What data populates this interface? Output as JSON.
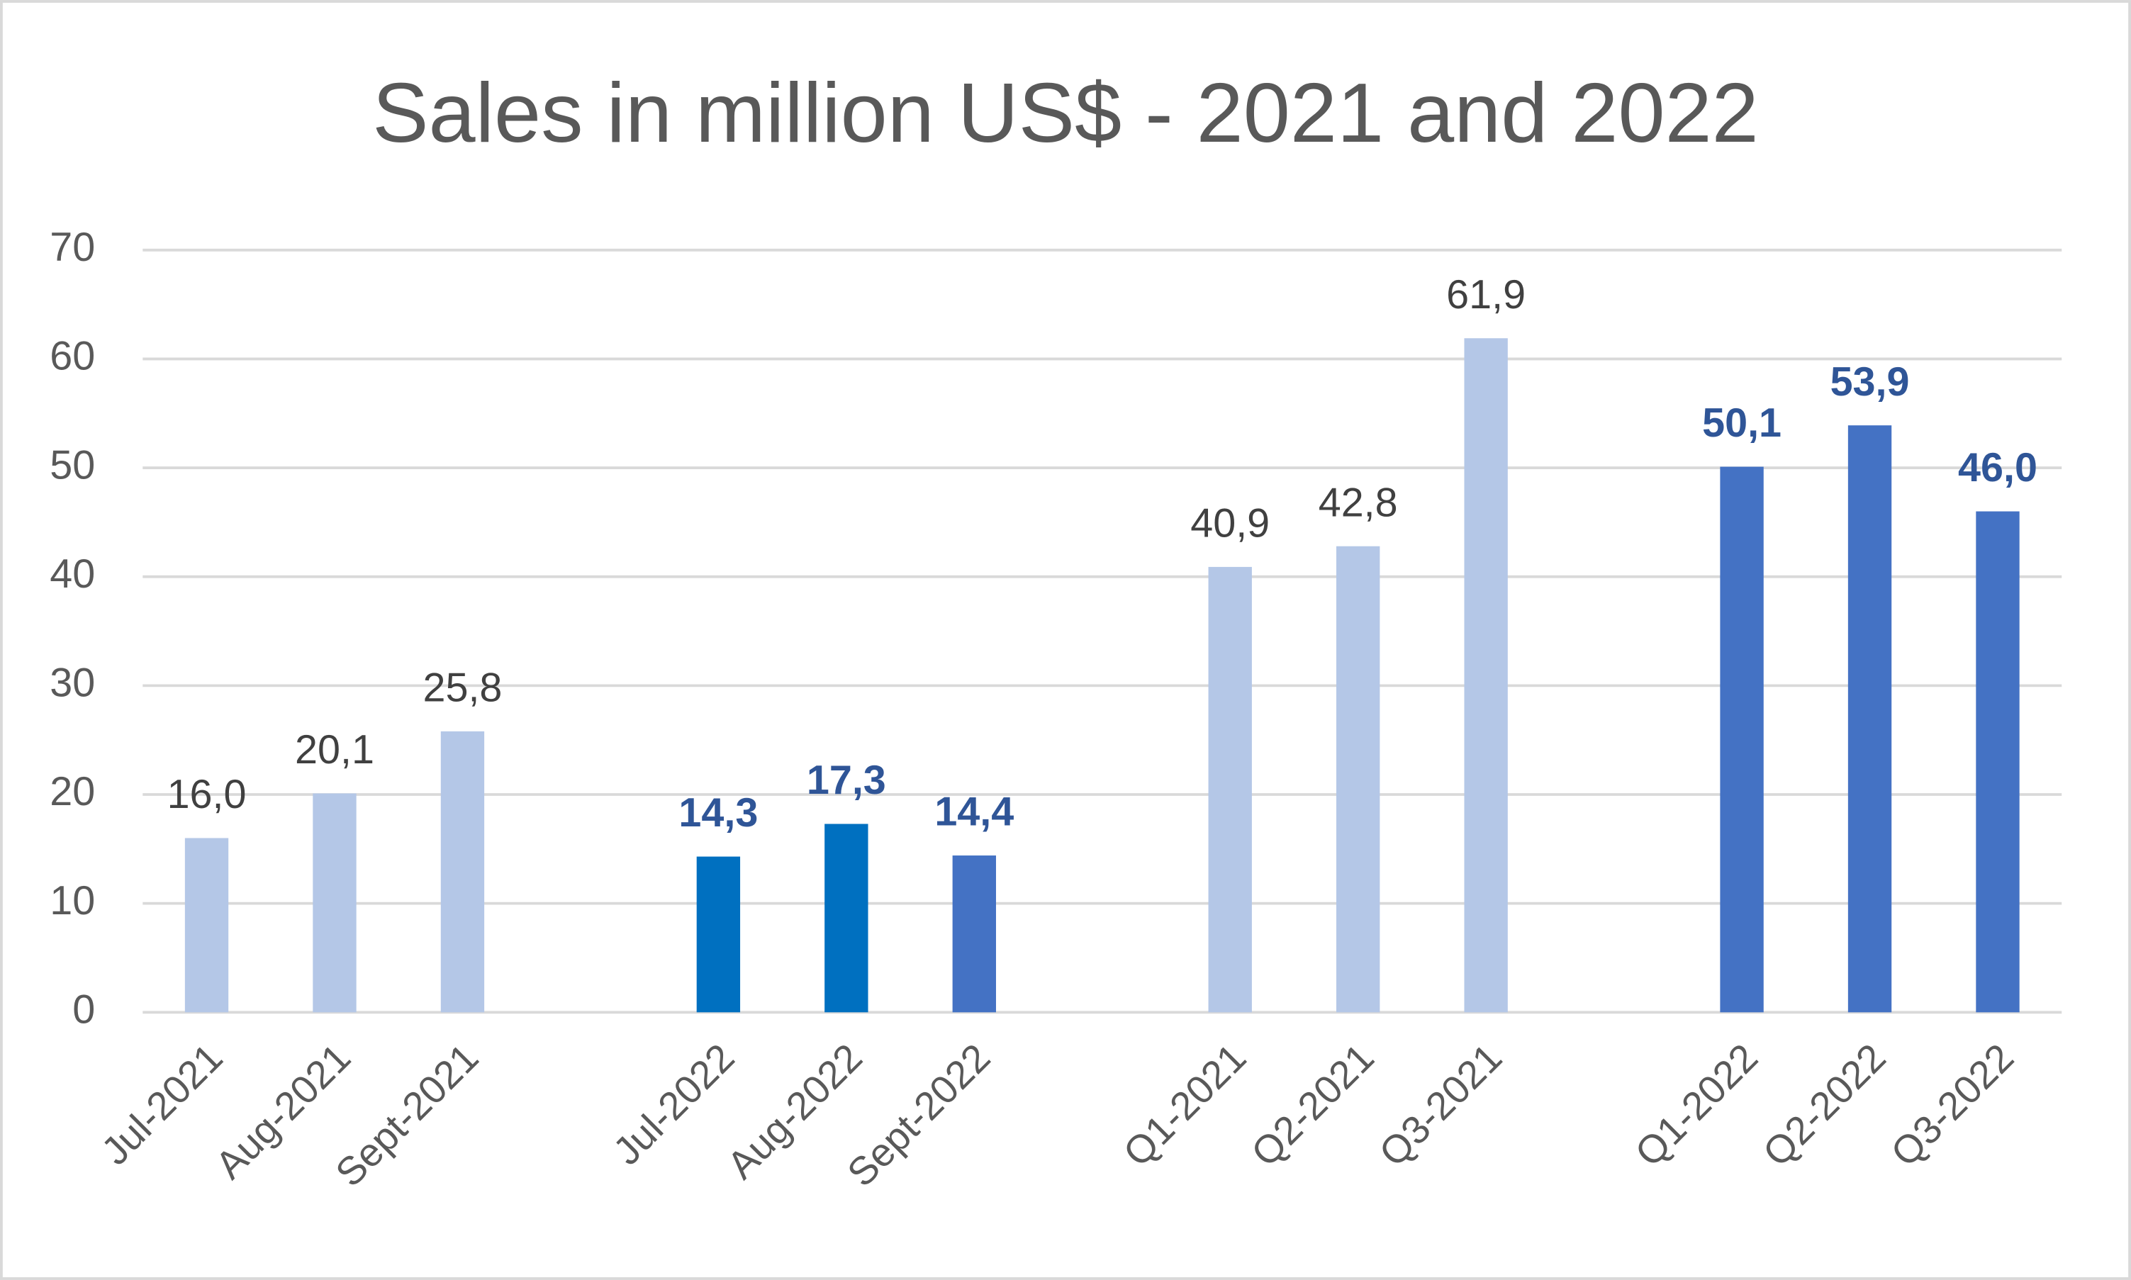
{
  "chart_data": {
    "type": "bar",
    "title": "Sales in million US$ - 2021 and 2022",
    "categories": [
      "Jul-2021",
      "Aug-2021",
      "Sept-2021",
      null,
      "Jul-2022",
      "Aug-2022",
      "Sept-2022",
      null,
      "Q1-2021",
      "Q2-2021",
      "Q3-2021",
      null,
      "Q1-2022",
      "Q2-2022",
      "Q3-2022"
    ],
    "values": [
      16.0,
      20.1,
      25.8,
      null,
      14.3,
      17.3,
      14.4,
      null,
      40.9,
      42.8,
      61.9,
      null,
      50.1,
      53.9,
      46.0
    ],
    "value_labels": [
      "16,0",
      "20,1",
      "25,8",
      null,
      "14,3",
      "17,3",
      "14,4",
      null,
      "40,9",
      "42,8",
      "61,9",
      null,
      "50,1",
      "53,9",
      "46,0"
    ],
    "colors": [
      "#b4c7e7",
      "#b4c7e7",
      "#b4c7e7",
      null,
      "#0070c0",
      "#0070c0",
      "#4472c4",
      null,
      "#b4c7e7",
      "#b4c7e7",
      "#b4c7e7",
      null,
      "#4472c4",
      "#4472c4",
      "#4472c4"
    ],
    "value_label_colors": [
      "#404040",
      "#404040",
      "#404040",
      null,
      "#2f5597",
      "#2f5597",
      "#2f5597",
      null,
      "#404040",
      "#404040",
      "#404040",
      null,
      "#2f5597",
      "#2f5597",
      "#2f5597"
    ],
    "value_label_bold": [
      false,
      false,
      false,
      null,
      true,
      true,
      true,
      null,
      false,
      false,
      false,
      null,
      true,
      true,
      true
    ],
    "ylim": [
      0,
      70
    ],
    "yticks": [
      0,
      10,
      20,
      30,
      40,
      50,
      60,
      70
    ],
    "grid": true
  }
}
